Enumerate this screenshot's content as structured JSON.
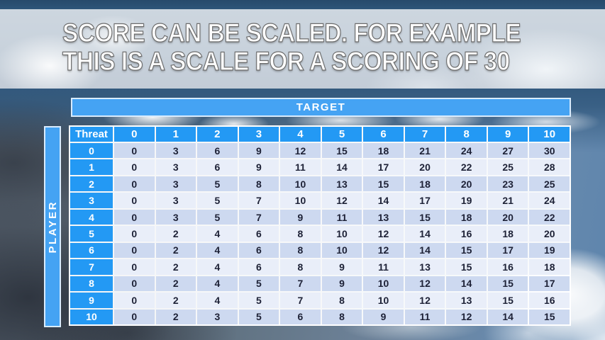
{
  "slide": {
    "title_line1": "SCORE CAN BE SCALED. FOR EXAMPLE",
    "title_line2": "THIS IS A SCALE FOR A SCORING OF 30"
  },
  "matrix": {
    "target_label": "TARGET",
    "player_label": "PLAYER",
    "corner_label": "Threat",
    "column_headers": [
      "0",
      "1",
      "2",
      "3",
      "4",
      "5",
      "6",
      "7",
      "8",
      "9",
      "10"
    ],
    "rows": [
      {
        "label": "0",
        "values": [
          0,
          3,
          6,
          9,
          12,
          15,
          18,
          21,
          24,
          27,
          30
        ]
      },
      {
        "label": "1",
        "values": [
          0,
          3,
          6,
          9,
          11,
          14,
          17,
          20,
          22,
          25,
          28
        ]
      },
      {
        "label": "2",
        "values": [
          0,
          3,
          5,
          8,
          10,
          13,
          15,
          18,
          20,
          23,
          25
        ]
      },
      {
        "label": "3",
        "values": [
          0,
          3,
          5,
          7,
          10,
          12,
          14,
          17,
          19,
          21,
          24
        ]
      },
      {
        "label": "4",
        "values": [
          0,
          3,
          5,
          7,
          9,
          11,
          13,
          15,
          18,
          20,
          22
        ]
      },
      {
        "label": "5",
        "values": [
          0,
          2,
          4,
          6,
          8,
          10,
          12,
          14,
          16,
          18,
          20
        ]
      },
      {
        "label": "6",
        "values": [
          0,
          2,
          4,
          6,
          8,
          10,
          12,
          14,
          15,
          17,
          19
        ]
      },
      {
        "label": "7",
        "values": [
          0,
          2,
          4,
          6,
          8,
          9,
          11,
          13,
          15,
          16,
          18
        ]
      },
      {
        "label": "8",
        "values": [
          0,
          2,
          4,
          5,
          7,
          9,
          10,
          12,
          14,
          15,
          17
        ]
      },
      {
        "label": "9",
        "values": [
          0,
          2,
          4,
          5,
          7,
          8,
          10,
          12,
          13,
          15,
          16
        ]
      },
      {
        "label": "10",
        "values": [
          0,
          2,
          3,
          5,
          6,
          8,
          9,
          11,
          12,
          14,
          15
        ]
      }
    ]
  },
  "colors": {
    "cell_blue": "#2399f4",
    "bar_blue": "#45a3f3",
    "bar_border": "#d9ecfe",
    "row_even": "#cdd9f0",
    "row_odd": "#e9eef9",
    "body_text": "#1d2136"
  }
}
